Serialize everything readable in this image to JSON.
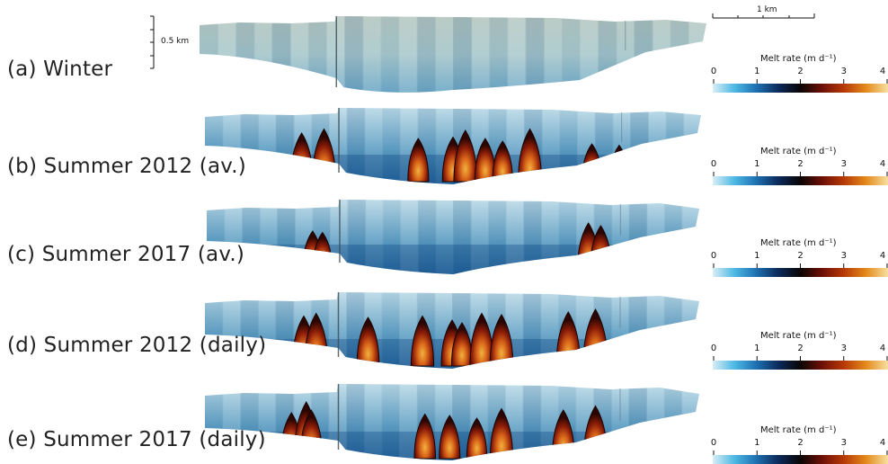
{
  "panels": [
    {
      "id": "a",
      "label": "(a) Winter"
    },
    {
      "id": "b",
      "label": "(b) Summer 2012 (av.)"
    },
    {
      "id": "c",
      "label": "(c) Summer 2017 (av.)"
    },
    {
      "id": "d",
      "label": "(d) Summer 2012 (daily)"
    },
    {
      "id": "e",
      "label": "(e) Summer 2017 (daily)"
    }
  ],
  "scale_bars": {
    "vertical": "0.5 km",
    "horizontal": "1 km"
  },
  "colorbar": {
    "title": "Melt rate (m d⁻¹)",
    "ticks": [
      "0",
      "1",
      "2",
      "3",
      "4"
    ],
    "range": [
      0,
      4
    ],
    "colors": [
      "#d8eef6",
      "#4cb8e4",
      "#1d6fb0",
      "#0b2a5a",
      "#0a0505",
      "#6e1006",
      "#b73a06",
      "#e48a1c",
      "#f7dfa0"
    ]
  },
  "melt_hotspots": {
    "units": "m d⁻¹",
    "a": [],
    "b": [
      [
        0.195,
        3.2
      ],
      [
        0.24,
        3.5
      ],
      [
        0.43,
        2.8
      ],
      [
        0.5,
        2.9
      ],
      [
        0.525,
        3.4
      ],
      [
        0.565,
        2.8
      ],
      [
        0.6,
        2.6
      ],
      [
        0.655,
        3.5
      ],
      [
        0.78,
        2.4
      ],
      [
        0.835,
        2.3
      ]
    ],
    "c": [
      [
        0.215,
        2.6
      ],
      [
        0.235,
        2.5
      ],
      [
        0.775,
        3.2
      ],
      [
        0.8,
        3.0
      ]
    ],
    "d": [
      [
        0.2,
        3.3
      ],
      [
        0.225,
        3.5
      ],
      [
        0.33,
        3.2
      ],
      [
        0.44,
        3.3
      ],
      [
        0.5,
        3.0
      ],
      [
        0.52,
        2.8
      ],
      [
        0.56,
        3.5
      ],
      [
        0.6,
        3.4
      ],
      [
        0.735,
        3.6
      ],
      [
        0.79,
        3.8
      ]
    ],
    "e": [
      [
        0.175,
        3.0
      ],
      [
        0.205,
        3.8
      ],
      [
        0.215,
        3.2
      ],
      [
        0.445,
        2.9
      ],
      [
        0.495,
        2.8
      ],
      [
        0.55,
        2.6
      ],
      [
        0.6,
        3.3
      ],
      [
        0.725,
        3.2
      ],
      [
        0.79,
        3.5
      ]
    ]
  }
}
